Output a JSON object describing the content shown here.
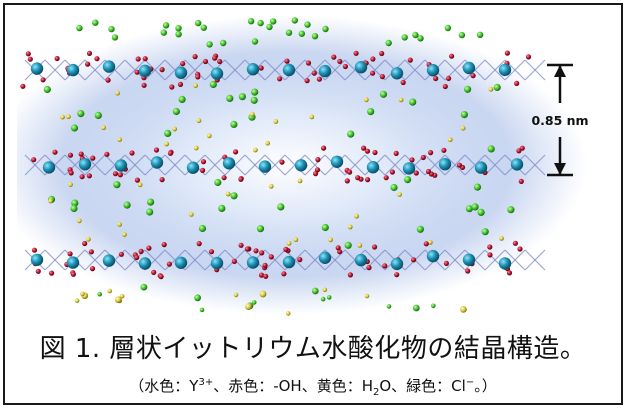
{
  "figure": {
    "spacing_label": "0.85 nm",
    "layer_count": 3,
    "colors": {
      "yttrium": "#1a8fb3",
      "hydroxide": "#b3122b",
      "water": "#d8c93a",
      "chloride": "#3dbf2c",
      "bond": "#7a86c8",
      "glow": "#9fb6e6"
    }
  },
  "caption": {
    "title": "図 1. 層状イットリウム水酸化物の結晶構造。",
    "legend_open": "（水色：Y",
    "y_charge": "3+",
    "legend_mid1": "、赤色：-OH、黄色：H",
    "water_sub": "2",
    "legend_mid2": "O、緑色：Cl",
    "cl_charge": "−",
    "legend_close": "。）"
  }
}
